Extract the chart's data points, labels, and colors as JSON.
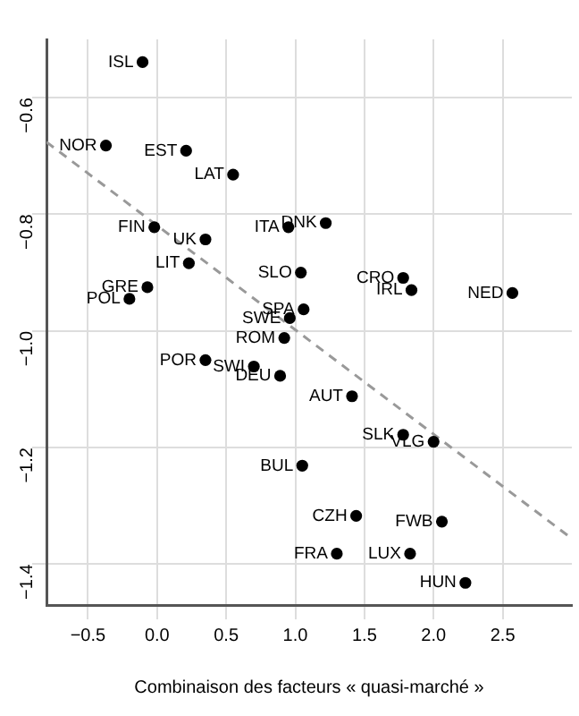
{
  "chart_data": {
    "type": "scatter",
    "xlabel": "Combinaison des facteurs « quasi‑marché »",
    "xlim": [
      -0.8,
      3.0
    ],
    "xticks": [
      -0.5,
      {
        "value": 0,
        "label": "0.0"
      },
      0.5,
      {
        "value": 1,
        "label": "1.0"
      },
      1.5,
      {
        "value": 2,
        "label": "2.0"
      },
      2.5
    ],
    "ylim": [
      -1.47,
      -0.5
    ],
    "yticks": [
      -0.6,
      -0.8,
      {
        "value": -1,
        "label": "−1.0"
      },
      -1.2,
      -1.4
    ],
    "grid": true,
    "marker": "circle",
    "series": [
      {
        "type": "line",
        "color": "#999999",
        "line_style": "dashed",
        "marker": "none",
        "x": [
          -0.8,
          3.0
        ],
        "values": [
          -0.676,
          -1.356
        ]
      },
      {
        "color": "#000000",
        "x": [
          -0.105,
          -0.37,
          0.21,
          0.55,
          1.22,
          0.95,
          -0.02,
          0.35,
          0.23,
          1.04,
          1.78,
          1.84,
          2.57,
          -0.07,
          -0.2,
          1.06,
          0.96,
          0.92,
          0.35,
          0.7,
          0.89,
          1.41,
          1.78,
          2.0,
          1.05,
          1.44,
          2.06,
          1.3,
          1.83,
          2.23
        ],
        "values": [
          -0.539,
          -0.682,
          -0.691,
          -0.732,
          -0.815,
          -0.822,
          -0.822,
          -0.843,
          -0.884,
          -0.9,
          -0.909,
          -0.93,
          -0.935,
          -0.925,
          -0.945,
          -0.963,
          -0.978,
          -1.012,
          -1.05,
          -1.061,
          -1.077,
          -1.112,
          -1.178,
          -1.19,
          -1.231,
          -1.317,
          -1.327,
          -1.382,
          -1.382,
          -1.432
        ]
      }
    ],
    "annotations": [
      {
        "text": "ISL",
        "x": -0.105,
        "y": -0.539
      },
      {
        "text": "NOR",
        "x": -0.37,
        "y": -0.682
      },
      {
        "text": "EST",
        "x": 0.21,
        "y": -0.691
      },
      {
        "text": "LAT",
        "x": 0.55,
        "y": -0.732
      },
      {
        "text": "DNK",
        "x": 1.22,
        "y": -0.815
      },
      {
        "text": "ITA",
        "x": 0.95,
        "y": -0.822
      },
      {
        "text": "FIN",
        "x": -0.02,
        "y": -0.822
      },
      {
        "text": "UK",
        "x": 0.35,
        "y": -0.843
      },
      {
        "text": "LIT",
        "x": 0.23,
        "y": -0.884
      },
      {
        "text": "SLO",
        "x": 1.04,
        "y": -0.9
      },
      {
        "text": "CRO",
        "x": 1.78,
        "y": -0.909
      },
      {
        "text": "IRL",
        "x": 1.84,
        "y": -0.93
      },
      {
        "text": "NED",
        "x": 2.57,
        "y": -0.935
      },
      {
        "text": "GRE",
        "x": -0.07,
        "y": -0.925
      },
      {
        "text": "POL",
        "x": -0.2,
        "y": -0.945
      },
      {
        "text": "SPA",
        "x": 1.06,
        "y": -0.963
      },
      {
        "text": "SWE",
        "x": 0.96,
        "y": -0.978
      },
      {
        "text": "ROM",
        "x": 0.92,
        "y": -1.012
      },
      {
        "text": "POR",
        "x": 0.35,
        "y": -1.05
      },
      {
        "text": "SWI",
        "x": 0.7,
        "y": -1.061
      },
      {
        "text": "DEU",
        "x": 0.89,
        "y": -1.077
      },
      {
        "text": "AUT",
        "x": 1.41,
        "y": -1.112
      },
      {
        "text": "SLK",
        "x": 1.78,
        "y": -1.178
      },
      {
        "text": "VLG",
        "x": 2.0,
        "y": -1.19
      },
      {
        "text": "BUL",
        "x": 1.05,
        "y": -1.231
      },
      {
        "text": "CZH",
        "x": 1.44,
        "y": -1.317
      },
      {
        "text": "FWB",
        "x": 2.06,
        "y": -1.327
      },
      {
        "text": "FRA",
        "x": 1.3,
        "y": -1.382
      },
      {
        "text": "LUX",
        "x": 1.83,
        "y": -1.382
      },
      {
        "text": "HUN",
        "x": 2.23,
        "y": -1.432
      }
    ]
  }
}
